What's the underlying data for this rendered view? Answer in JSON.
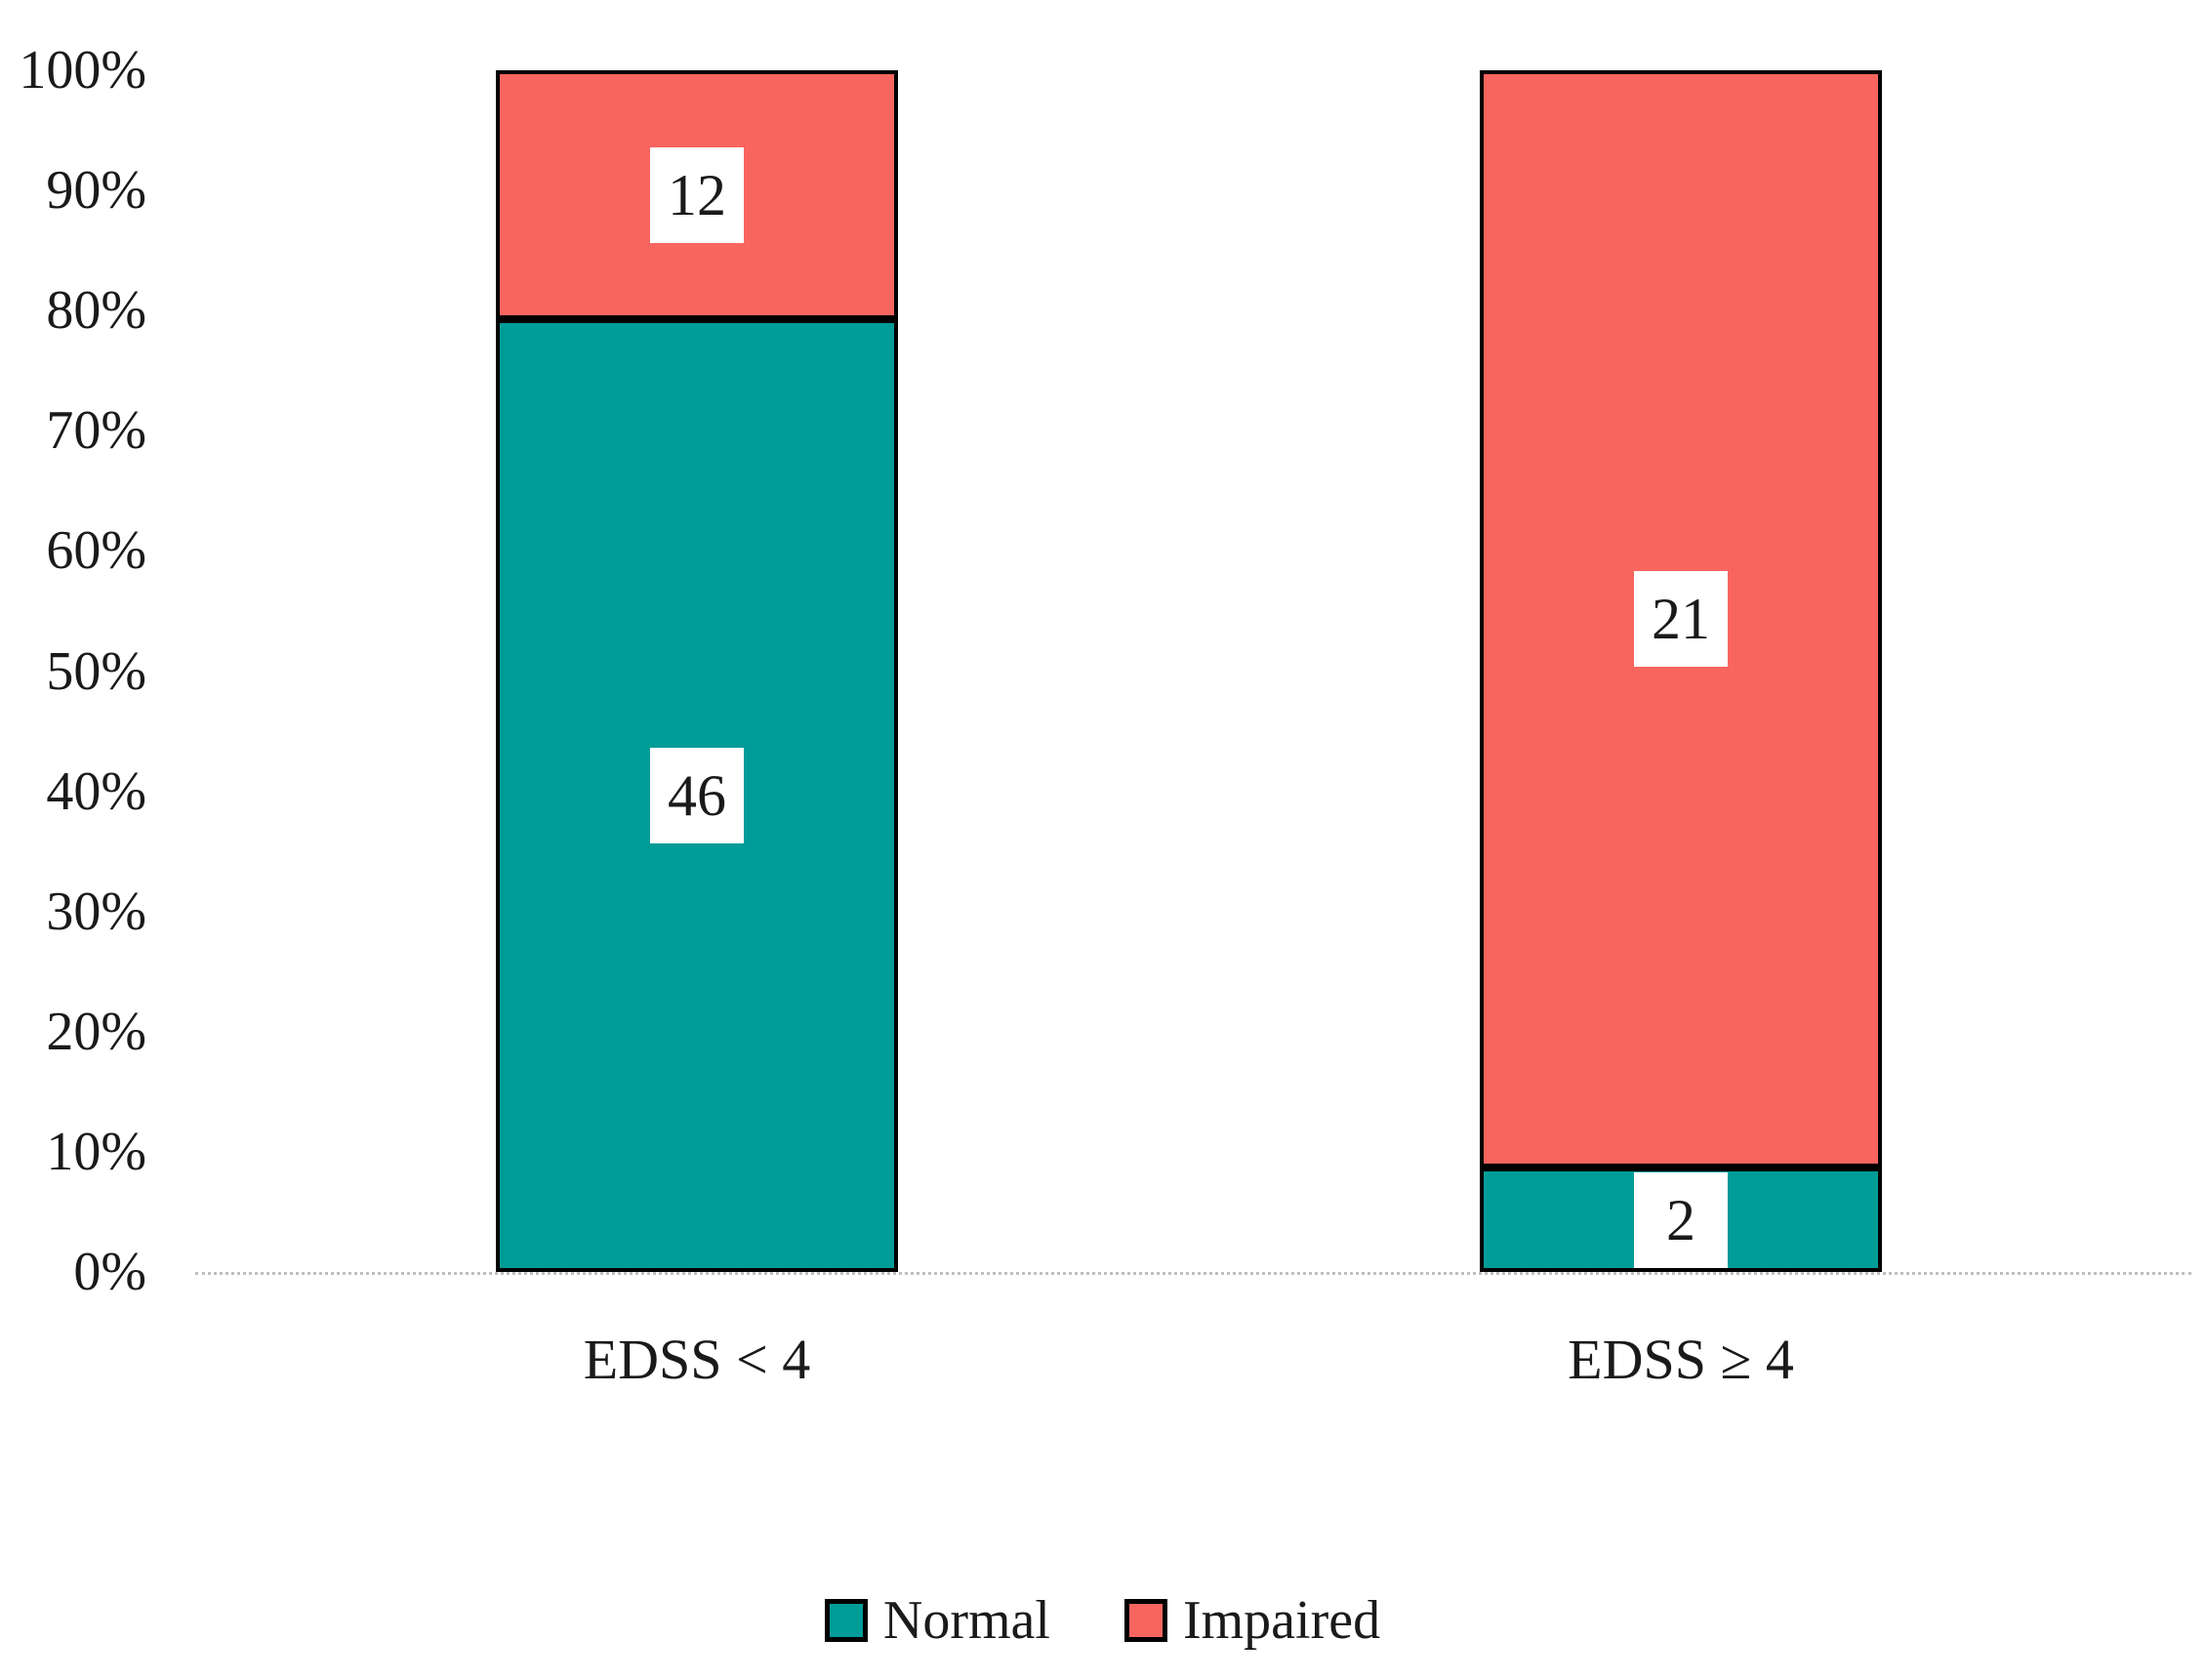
{
  "chart_data": {
    "type": "bar",
    "variant": "100-percent-stacked-column",
    "categories": [
      "EDSS < 4",
      "EDSS ≥ 4"
    ],
    "series": [
      {
        "name": "Normal",
        "values": [
          46,
          2
        ],
        "color": "#009C98"
      },
      {
        "name": "Impaired",
        "values": [
          12,
          21
        ],
        "color": "#F8655F"
      }
    ],
    "stack_order_bottom_to_top": [
      "Normal",
      "Impaired"
    ],
    "data_labels": {
      "shown": true,
      "style": "white-box-black-text",
      "per_category": [
        {
          "category": "EDSS < 4",
          "Normal": 46,
          "Impaired": 12
        },
        {
          "category": "EDSS ≥ 4",
          "Normal": 2,
          "Impaired": 21
        }
      ]
    },
    "title": "",
    "xlabel": "",
    "ylabel": "",
    "ylim": [
      0,
      100
    ],
    "yticks": [
      "0%",
      "10%",
      "20%",
      "30%",
      "40%",
      "50%",
      "60%",
      "70%",
      "80%",
      "90%",
      "100%"
    ],
    "grid": false,
    "axis_line_style": "dotted-light-gray",
    "bar_border_color": "#000000",
    "legend_position": "bottom-center"
  },
  "legend": {
    "items": [
      {
        "label": "Normal",
        "color": "#009C98"
      },
      {
        "label": "Impaired",
        "color": "#F8655F"
      }
    ]
  },
  "colors": {
    "normal_fill": "#009C98",
    "impaired_fill": "#F8655F",
    "bar_border": "#000000",
    "axis_line": "#BFBFBF",
    "text": "#1A1A1A",
    "background": "#FFFFFF",
    "data_label_background": "#FFFFFF"
  }
}
